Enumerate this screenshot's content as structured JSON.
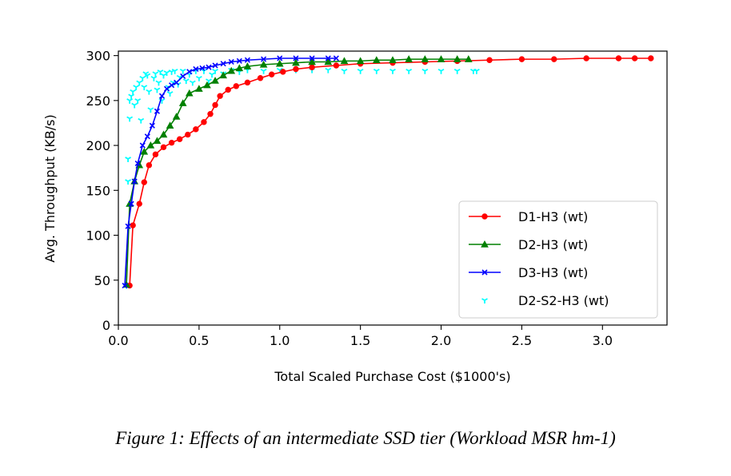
{
  "caption": "Figure 1: Effects of an intermediate SSD tier (Workload MSR hm-1)",
  "chart_data": {
    "type": "line",
    "title": "",
    "xlabel": "Total Scaled Purchase Cost ($1000's)",
    "ylabel": "Avg. Throughput (KB/s)",
    "xlim": [
      0.0,
      3.4
    ],
    "ylim": [
      0,
      305
    ],
    "xticks": [
      0.0,
      0.5,
      1.0,
      1.5,
      2.0,
      2.5,
      3.0
    ],
    "xtick_labels": [
      "0.0",
      "0.5",
      "1.0",
      "1.5",
      "2.0",
      "2.5",
      "3.0"
    ],
    "yticks": [
      0,
      50,
      100,
      150,
      200,
      250,
      300
    ],
    "ytick_labels": [
      "0",
      "50",
      "100",
      "150",
      "200",
      "250",
      "300"
    ],
    "grid": false,
    "legend_position": "lower-right",
    "series": [
      {
        "name": "D1-H3 (wt)",
        "color": "#ff0000",
        "marker": "circle",
        "line": true,
        "x": [
          0.07,
          0.09,
          0.13,
          0.16,
          0.19,
          0.23,
          0.28,
          0.33,
          0.38,
          0.43,
          0.48,
          0.53,
          0.57,
          0.6,
          0.63,
          0.68,
          0.73,
          0.8,
          0.88,
          0.95,
          1.02,
          1.1,
          1.2,
          1.35,
          1.5,
          1.7,
          1.9,
          2.1,
          2.3,
          2.5,
          2.7,
          2.9,
          3.1,
          3.2,
          3.3
        ],
        "y": [
          44,
          111,
          135,
          159,
          178,
          190,
          198,
          203,
          207,
          212,
          218,
          226,
          235,
          245,
          255,
          262,
          266,
          270,
          275,
          279,
          282,
          285,
          287,
          289,
          291,
          292,
          293,
          294,
          295,
          296,
          296,
          297,
          297,
          297,
          297
        ]
      },
      {
        "name": "D2-H3 (wt)",
        "color": "#008000",
        "marker": "triangle",
        "line": true,
        "x": [
          0.05,
          0.07,
          0.1,
          0.13,
          0.16,
          0.2,
          0.24,
          0.28,
          0.32,
          0.36,
          0.4,
          0.44,
          0.5,
          0.55,
          0.6,
          0.65,
          0.7,
          0.75,
          0.8,
          0.9,
          1.0,
          1.1,
          1.2,
          1.3,
          1.4,
          1.5,
          1.6,
          1.7,
          1.8,
          1.9,
          2.0,
          2.1,
          2.17
        ],
        "y": [
          45,
          135,
          160,
          178,
          193,
          200,
          205,
          212,
          222,
          232,
          247,
          258,
          263,
          267,
          272,
          278,
          283,
          286,
          288,
          290,
          291,
          292,
          293,
          293,
          294,
          294,
          295,
          295,
          296,
          296,
          296,
          296,
          296
        ]
      },
      {
        "name": "D3-H3 (wt)",
        "color": "#0000ff",
        "marker": "x",
        "line": true,
        "x": [
          0.04,
          0.06,
          0.08,
          0.1,
          0.12,
          0.15,
          0.18,
          0.21,
          0.24,
          0.27,
          0.3,
          0.33,
          0.36,
          0.4,
          0.44,
          0.48,
          0.52,
          0.56,
          0.6,
          0.65,
          0.7,
          0.75,
          0.8,
          0.9,
          1.0,
          1.1,
          1.2,
          1.3,
          1.35
        ],
        "y": [
          44,
          110,
          135,
          160,
          180,
          200,
          210,
          222,
          238,
          255,
          263,
          267,
          270,
          277,
          282,
          285,
          286,
          287,
          289,
          291,
          293,
          294,
          295,
          296,
          297,
          297,
          297,
          297,
          297
        ]
      },
      {
        "name": "D2-S2-H3 (wt)",
        "color": "#00ffff",
        "marker": "tri_down",
        "line": false,
        "x": [
          0.05,
          0.06,
          0.06,
          0.07,
          0.07,
          0.08,
          0.09,
          0.1,
          0.11,
          0.12,
          0.13,
          0.14,
          0.15,
          0.16,
          0.17,
          0.18,
          0.19,
          0.2,
          0.22,
          0.23,
          0.24,
          0.25,
          0.26,
          0.27,
          0.28,
          0.3,
          0.31,
          0.32,
          0.33,
          0.34,
          0.35,
          0.37,
          0.38,
          0.4,
          0.42,
          0.44,
          0.46,
          0.48,
          0.5,
          0.53,
          0.56,
          0.58,
          0.6,
          0.65,
          0.7,
          0.75,
          0.8,
          0.9,
          1.0,
          1.1,
          1.2,
          1.3,
          1.4,
          1.5,
          1.6,
          1.7,
          1.8,
          1.9,
          2.0,
          2.1,
          2.2,
          2.22
        ],
        "y": [
          44,
          160,
          185,
          230,
          250,
          255,
          260,
          245,
          265,
          250,
          270,
          228,
          275,
          265,
          280,
          278,
          260,
          240,
          275,
          280,
          262,
          270,
          282,
          250,
          278,
          281,
          265,
          258,
          282,
          270,
          283,
          268,
          276,
          283,
          272,
          279,
          270,
          283,
          275,
          283,
          272,
          279,
          283,
          280,
          284,
          282,
          284,
          283,
          284,
          284,
          284,
          284,
          283,
          283,
          283,
          283,
          283,
          283,
          283,
          283,
          283,
          283
        ]
      }
    ]
  }
}
